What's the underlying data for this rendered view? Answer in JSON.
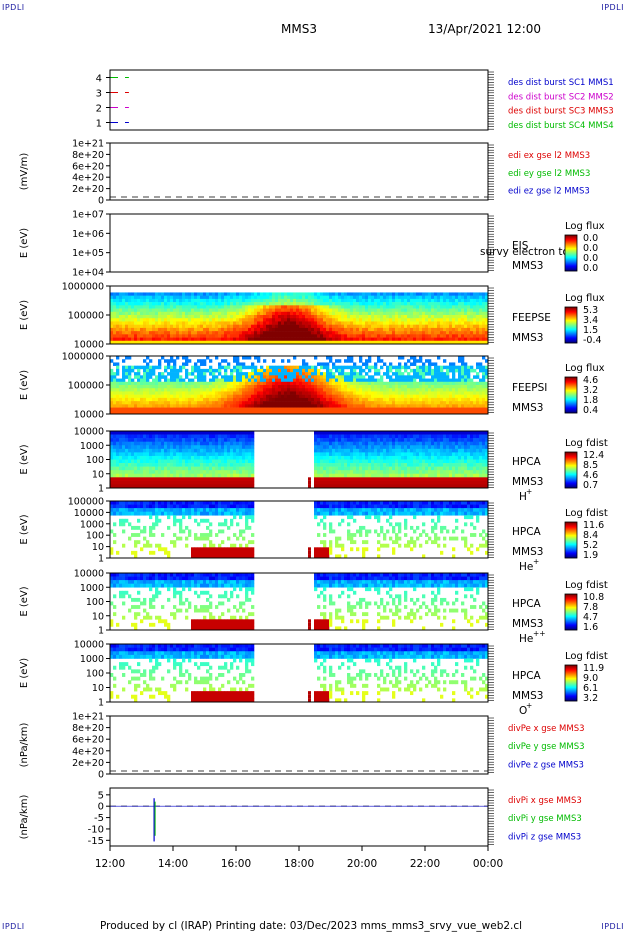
{
  "corners": {
    "tl": "IPDLI",
    "tr": "IPDLI",
    "bl": "IPDLI",
    "br": "IPDLI"
  },
  "header": {
    "spacecraft": "MMS3",
    "datetime": "13/Apr/2021 12:00"
  },
  "footer": {
    "text": "Produced by cl (IRAP)   Printing date: 03/Dec/2023   mms_mms3_srvy_vue_web2.cl"
  },
  "chart_data": [
    {
      "type": "line",
      "id": "burst",
      "ylim": [
        0.5,
        4.5
      ],
      "yticks": [
        "4",
        "3",
        "2",
        "1"
      ],
      "ylabel": "",
      "legend": [
        {
          "text": "des dist burst SC1 MMS1",
          "color": "#0000cc"
        },
        {
          "text": "des dist burst SC2 MMS2",
          "color": "#cc00cc"
        },
        {
          "text": "des dist burst SC3 MMS3",
          "color": "#dd0000"
        },
        {
          "text": "des dist burst SC4 MMS4",
          "color": "#00bb00"
        }
      ],
      "series": [
        {
          "y": 4,
          "x": [
            12.0,
            12.6
          ],
          "color": "#00bb00"
        },
        {
          "y": 3,
          "x": [
            12.0,
            12.6
          ],
          "color": "#dd0000"
        },
        {
          "y": 2,
          "x": [
            12.0,
            12.6
          ],
          "color": "#cc00cc"
        },
        {
          "y": 1,
          "x": [
            12.0,
            12.6
          ],
          "color": "#0000cc"
        }
      ]
    },
    {
      "type": "line",
      "id": "edi",
      "ylabel": "(mV/m)",
      "yticks": [
        "1e+21",
        "8e+20",
        "6e+20",
        "4e+20",
        "2e+20",
        "0"
      ],
      "legend": [
        {
          "text": "edi ex gse l2 MMS3",
          "color": "#dd0000"
        },
        {
          "text": "edi ey gse l2 MMS3",
          "color": "#00bb00"
        },
        {
          "text": "edi ez gse l2 MMS3",
          "color": "#0000cc"
        }
      ]
    },
    {
      "type": "heatmap",
      "id": "eis",
      "ylabel": "E (eV)",
      "yticks": [
        "1e+07",
        "1e+06",
        "1e+05",
        "1e+04"
      ],
      "label": [
        "EIS",
        "MMS3"
      ],
      "overlay": "survy electron to",
      "colorbar": {
        "title": "Log flux",
        "ticks": [
          "0.0",
          "0.0",
          "0.0",
          "0.0"
        ]
      },
      "empty": true
    },
    {
      "type": "heatmap",
      "id": "feepse",
      "ylabel": "E (eV)",
      "yticks": [
        "1000000",
        "100000",
        "10000"
      ],
      "label": [
        "FEEPSE",
        "MMS3"
      ],
      "colorbar": {
        "title": "Log flux",
        "ticks": [
          "5.3",
          "3.4",
          "1.5",
          "-0.4"
        ]
      }
    },
    {
      "type": "heatmap",
      "id": "feepsi",
      "ylabel": "E (eV)",
      "yticks": [
        "1000000",
        "100000",
        "10000"
      ],
      "label": [
        "FEEPSI",
        "MMS3"
      ],
      "colorbar": {
        "title": "Log flux",
        "ticks": [
          "4.6",
          "3.2",
          "1.8",
          "0.4"
        ]
      }
    },
    {
      "type": "heatmap",
      "id": "hpca_h",
      "ylabel": "E (eV)",
      "yticks": [
        "10000",
        "1000",
        "100",
        "10",
        "1"
      ],
      "label": [
        "HPCA",
        "MMS3"
      ],
      "species": "H",
      "charge": "+",
      "colorbar": {
        "title": "Log fdist",
        "ticks": [
          "12.4",
          "8.5",
          "4.6",
          "0.7"
        ]
      },
      "gaps": [
        [
          16.55,
          18.4
        ]
      ]
    },
    {
      "type": "heatmap",
      "id": "hpca_he",
      "ylabel": "E (eV)",
      "yticks": [
        "100000",
        "10000",
        "1000",
        "100",
        "10",
        "1"
      ],
      "label": [
        "HPCA",
        "MMS3"
      ],
      "species": "He",
      "charge": "+",
      "colorbar": {
        "title": "Log fdist",
        "ticks": [
          "11.6",
          "8.4",
          "5.2",
          "1.9"
        ]
      },
      "gaps": [
        [
          16.55,
          18.4
        ]
      ]
    },
    {
      "type": "heatmap",
      "id": "hpca_he2",
      "ylabel": "E (eV)",
      "yticks": [
        "10000",
        "1000",
        "100",
        "10",
        "1"
      ],
      "label": [
        "HPCA",
        "MMS3"
      ],
      "species": "He",
      "charge": "++",
      "colorbar": {
        "title": "Log fdist",
        "ticks": [
          "10.8",
          "7.8",
          "4.7",
          "1.6"
        ]
      },
      "gaps": [
        [
          16.55,
          18.4
        ]
      ]
    },
    {
      "type": "heatmap",
      "id": "hpca_o",
      "ylabel": "E (eV)",
      "yticks": [
        "10000",
        "1000",
        "100",
        "10",
        "1"
      ],
      "label": [
        "HPCA",
        "MMS3"
      ],
      "species": "O",
      "charge": "+",
      "colorbar": {
        "title": "Log fdist",
        "ticks": [
          "11.9",
          "9.0",
          "6.1",
          "3.2"
        ]
      },
      "gaps": [
        [
          16.55,
          18.4
        ]
      ]
    },
    {
      "type": "line",
      "id": "divpe",
      "ylabel": "(nPa/km)",
      "yticks": [
        "1e+21",
        "8e+20",
        "6e+20",
        "4e+20",
        "2e+20",
        "0"
      ],
      "legend": [
        {
          "text": "divPe x gse MMS3",
          "color": "#dd0000"
        },
        {
          "text": "divPe y gse MMS3",
          "color": "#00bb00"
        },
        {
          "text": "divPe z gse MMS3",
          "color": "#0000cc"
        }
      ]
    },
    {
      "type": "line",
      "id": "divpi",
      "ylabel": "(nPa/km)",
      "yticks": [
        "5",
        "0",
        "-5",
        "-10",
        "-15"
      ],
      "ylim": [
        -17.5,
        8
      ],
      "legend": [
        {
          "text": "divPi x gse MMS3",
          "color": "#dd0000"
        },
        {
          "text": "divPi y gse MMS3",
          "color": "#00bb00"
        },
        {
          "text": "divPi z gse MMS3",
          "color": "#0000cc"
        }
      ],
      "spike": {
        "x": 13.4,
        "ymin": -15.5,
        "ymax": 3.5
      }
    }
  ],
  "xaxis": {
    "ticks": [
      "12:00",
      "14:00",
      "16:00",
      "18:00",
      "20:00",
      "22:00",
      "00:00"
    ],
    "range_hours": [
      12,
      24
    ]
  }
}
